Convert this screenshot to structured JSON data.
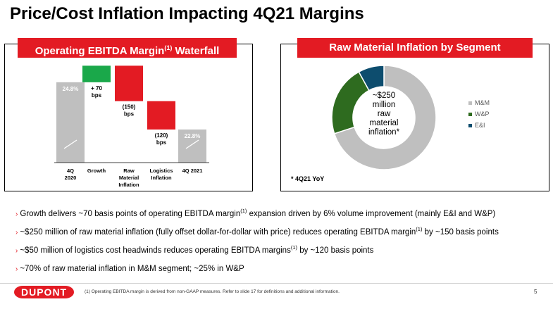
{
  "page": {
    "title": "Price/Cost Inflation Impacting 4Q21 Margins",
    "footnote": "(1)   Operating EBITDA margin is derived from non-GAAP measures.  Refer to slide 17 for definitions and additional information.",
    "page_number": "5",
    "logo_text": "DUPONT"
  },
  "left_panel": {
    "header": "Operating EBITDA Margin",
    "header_sup": "(1)",
    "header_suffix": " Waterfall"
  },
  "right_panel": {
    "header": "Raw Material Inflation by Segment",
    "note": "* 4Q21 YoY"
  },
  "colors": {
    "red": "#e31b23",
    "green": "#1aa84a",
    "gray": "#bfbfbf",
    "mm": "#bfbfbf",
    "wp": "#2e6b1f",
    "ei": "#0d4d6e"
  },
  "chart_data": [
    {
      "type": "bar",
      "subtype": "waterfall",
      "title": "Operating EBITDA Margin(1) Waterfall",
      "unit": "%",
      "steps": [
        {
          "category": "4Q\n2020",
          "kind": "total",
          "value": 24.8,
          "label": "24.8%"
        },
        {
          "category": "Growth",
          "kind": "delta",
          "value": 0.7,
          "label": "+ 70\nbps"
        },
        {
          "category": "Raw\nMaterial\nInflation",
          "kind": "delta",
          "value": -1.5,
          "label": "(150)\nbps"
        },
        {
          "category": "Logistics\nInflation",
          "kind": "delta",
          "value": -1.2,
          "label": "(120)\nbps"
        },
        {
          "category": "4Q 2021",
          "kind": "total",
          "value": 22.8,
          "label": "22.8%"
        }
      ]
    },
    {
      "type": "pie",
      "subtype": "donut",
      "title": "Raw Material Inflation by Segment",
      "center_label": "~$250\nmillion\nraw\nmaterial\ninflation*",
      "slices": [
        {
          "name": "M&M",
          "value": 70,
          "color": "#bfbfbf"
        },
        {
          "name": "W&P",
          "value": 22,
          "color": "#2e6b1f"
        },
        {
          "name": "E&I",
          "value": 8,
          "color": "#0d4d6e"
        }
      ],
      "legend_position": "right"
    }
  ],
  "bullets": [
    {
      "pre": "Growth delivers ~70 basis points of operating EBITDA margin",
      "sup": "(1)",
      "post": " expansion driven by 6% volume improvement (mainly E&I and W&P)"
    },
    {
      "pre": "~$250 million of raw material inflation (fully offset dollar-for-dollar with price) reduces operating EBITDA margin",
      "sup": "(1)",
      "post": " by ~150 basis points"
    },
    {
      "pre": "~$50 million of logistics cost headwinds reduces operating EBITDA margins",
      "sup": "(1)",
      "post": " by ~120 basis points"
    },
    {
      "pre": "~70% of raw material inflation in M&M segment; ~25% in W&P",
      "sup": "",
      "post": ""
    }
  ]
}
